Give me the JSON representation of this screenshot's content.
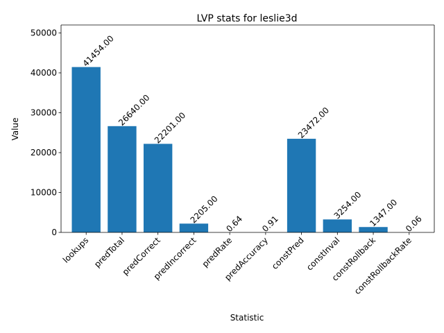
{
  "chart_data": {
    "type": "bar",
    "title": "LVP stats for leslie3d",
    "xlabel": "Statistic",
    "ylabel": "Value",
    "ylim": [
      0,
      52000
    ],
    "yticks": [
      0,
      10000,
      20000,
      30000,
      40000,
      50000
    ],
    "grid": false,
    "bar_color": "#1f77b4",
    "categories": [
      "lookups",
      "predTotal",
      "predCorrect",
      "predIncorrect",
      "predRate",
      "predAccuracy",
      "constPred",
      "constInval",
      "constRollback",
      "constRollbackRate"
    ],
    "values": [
      41454.0,
      26640.0,
      22201.0,
      2205.0,
      0.64,
      0.91,
      23472.0,
      3254.0,
      1347.0,
      0.06
    ],
    "value_labels": [
      "41454.00",
      "26640.00",
      "22201.00",
      "2205.00",
      "0.64",
      "0.91",
      "23472.00",
      "3254.00",
      "1347.00",
      "0.06"
    ]
  }
}
